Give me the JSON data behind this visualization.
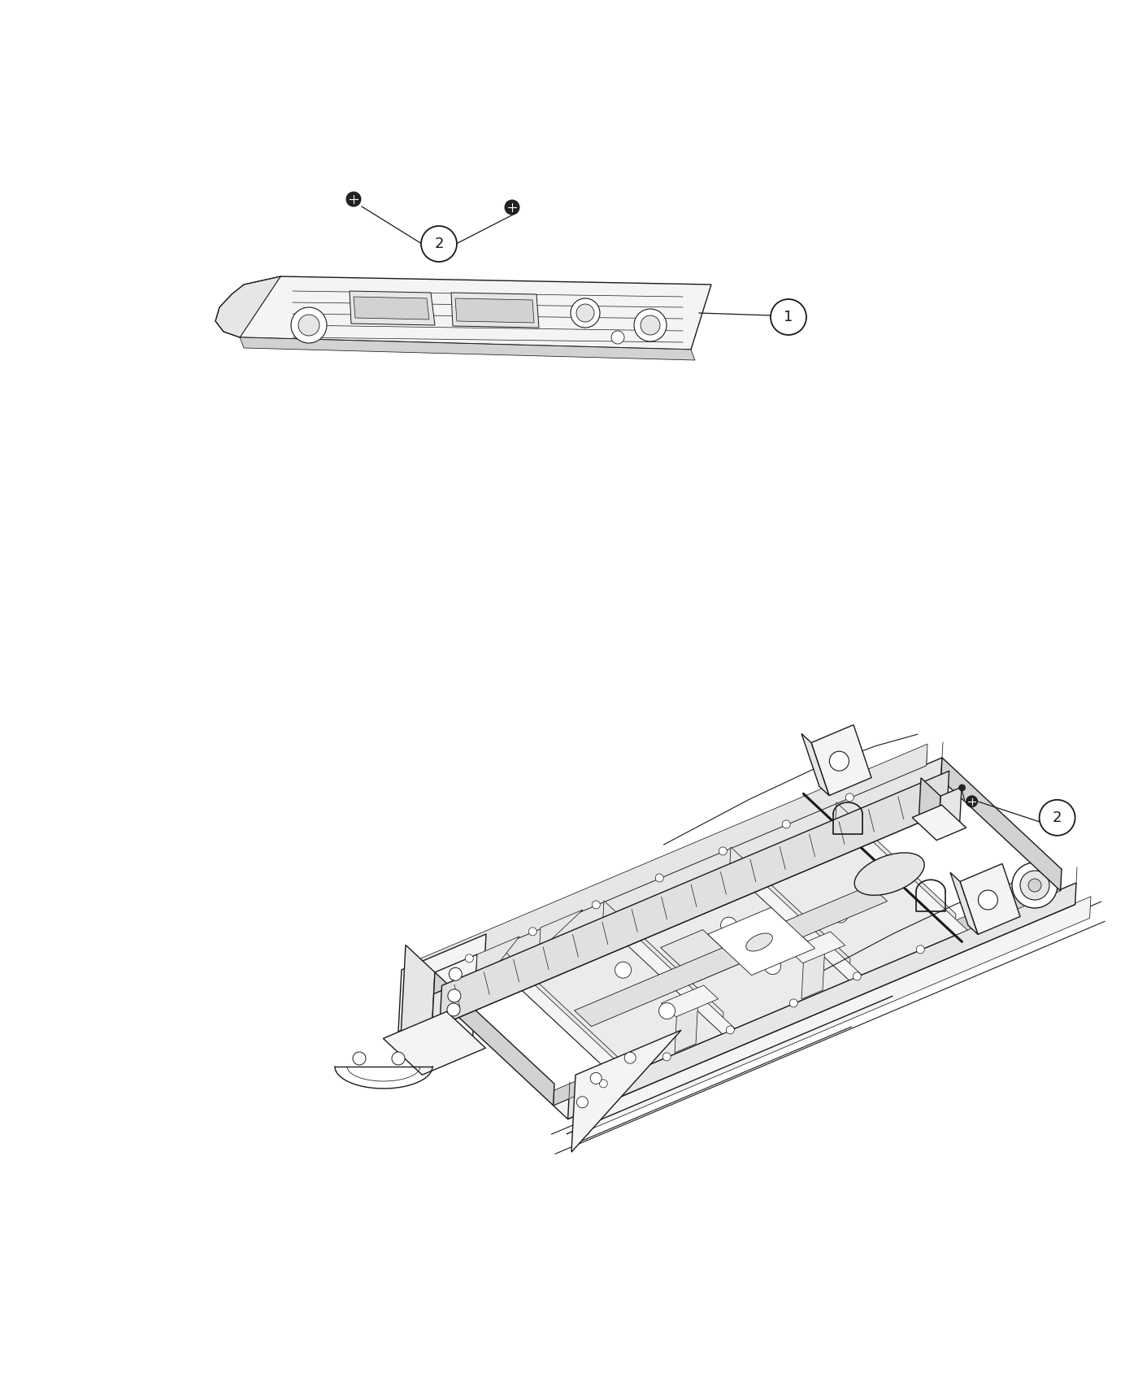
{
  "background_color": "#ffffff",
  "line_color": "#1a1a1a",
  "figure_width": 14.0,
  "figure_height": 17.0,
  "callout_1_label": "1",
  "callout_2_label": "2",
  "lw_main": 1.0,
  "lw_thin": 0.55,
  "lw_thick": 1.5,
  "fill_white": "#ffffff",
  "fill_light": "#f4f4f4",
  "fill_mid": "#e6e6e6",
  "fill_dark": "#d2d2d2",
  "fill_darker": "#c0c0c0",
  "screw_color": "#222222"
}
